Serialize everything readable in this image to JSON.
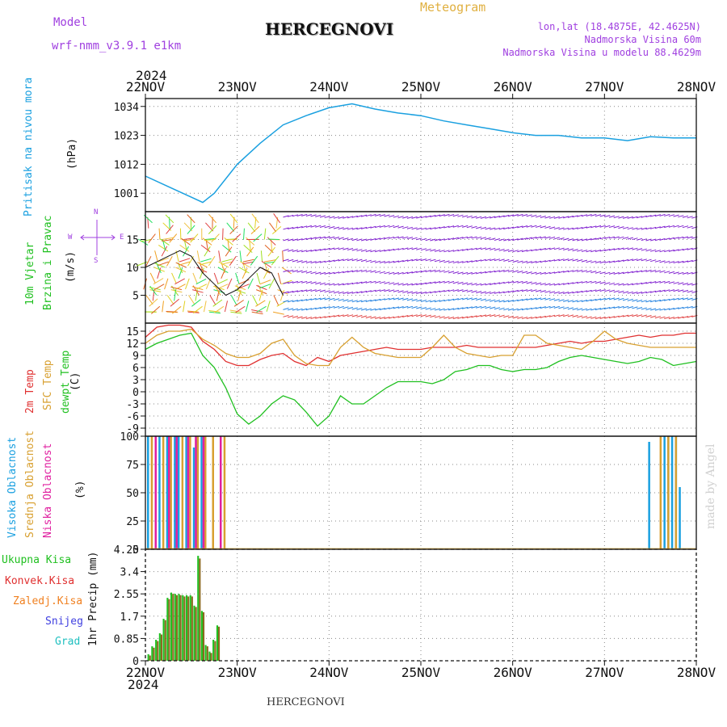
{
  "header": {
    "model_label": "Model",
    "model_name": "wrf-nmm_v3.9.1  e1km",
    "title": "HERCEGNOVI",
    "meteogram_label": "Meteogram",
    "lonlat": "lon,lat (18.4875E, 42.4625N)",
    "elevation": "Nadmorska Visina 60m",
    "model_elevation": "Nadmorska Visina u modelu 88.4629m",
    "year_top": "2024",
    "year_bottom": "2024",
    "footer_title": "HERCEGNOVI",
    "watermark": "made by Angel"
  },
  "colors": {
    "pressure": "#1aa0e0",
    "t2m": "#e03030",
    "sfc": "#d8a030",
    "dewpt": "#20c020",
    "cloud_high": "#1aa0e0",
    "cloud_mid": "#d8a030",
    "cloud_low": "#e020a0",
    "precip_total": "#20c020",
    "precip_conv": "#e03030",
    "precip_frz": "#f08020",
    "snow": "#4040e0",
    "hail": "#20c0c0",
    "wind_label": "#20c020",
    "compass": "#a040e0",
    "model": "#a040e0",
    "meteogram": "#e0b040"
  },
  "chart_data": [
    {
      "type": "line",
      "name": "pressure",
      "axis_labels": [
        "Pritisak na nivou mora",
        "(hPa)"
      ],
      "ylim": [
        994,
        1037
      ],
      "yticks": [
        "1001",
        "1012",
        "1023",
        "1034"
      ],
      "x_day_ticks": [
        "22NOV",
        "23NOV",
        "24NOV",
        "25NOV",
        "26NOV",
        "27NOV",
        "28NOV"
      ],
      "grid": true,
      "x_hours": [
        0,
        6,
        12,
        15,
        18,
        24,
        30,
        36,
        42,
        48,
        54,
        60,
        66,
        72,
        78,
        84,
        90,
        96,
        102,
        108,
        114,
        120,
        126,
        132,
        138,
        144
      ],
      "values": [
        1007.5,
        1003.5,
        999.5,
        997.5,
        1001,
        1012,
        1020,
        1027,
        1030.5,
        1033.5,
        1035,
        1033,
        1031.5,
        1030.5,
        1028.5,
        1027,
        1025.5,
        1024,
        1023,
        1023,
        1022,
        1022,
        1021,
        1022.5,
        1022,
        1022
      ]
    },
    {
      "type": "scatter",
      "name": "wind",
      "axis_labels": [
        "10m Vjetar",
        "Brzina i Pravac",
        "(m/s)"
      ],
      "compass": [
        "N",
        "E",
        "S",
        "W"
      ],
      "ylim": [
        0,
        20
      ],
      "yticks": [
        "5",
        "10",
        "15"
      ],
      "grid": true
    },
    {
      "type": "line",
      "name": "temperature",
      "axis_labels": [
        "2m Temp",
        "SFC Temp",
        "dewpt Temp",
        "(C)"
      ],
      "ylim": [
        -11,
        17
      ],
      "yticks": [
        "-9",
        "-6",
        "-3",
        "0",
        "3",
        "6",
        "9",
        "12",
        "15"
      ],
      "grid": true,
      "x_hours": [
        0,
        3,
        6,
        9,
        12,
        15,
        18,
        21,
        24,
        27,
        30,
        33,
        36,
        39,
        42,
        45,
        48,
        51,
        54,
        57,
        60,
        63,
        66,
        69,
        72,
        75,
        78,
        81,
        84,
        87,
        90,
        93,
        96,
        99,
        102,
        105,
        108,
        111,
        114,
        117,
        120,
        123,
        126,
        129,
        132,
        135,
        138,
        141,
        144
      ],
      "series": [
        {
          "name": "2m Temp",
          "values": [
            13.5,
            16,
            16.5,
            16.5,
            16,
            12.5,
            10.5,
            7.5,
            6.5,
            6.5,
            8,
            9,
            9.5,
            7.5,
            6.5,
            8.5,
            7.5,
            9,
            9.5,
            10,
            10.5,
            11,
            10.5,
            10.5,
            10.5,
            11,
            11,
            11,
            11.5,
            11,
            11,
            11,
            11,
            11,
            11,
            11.5,
            12,
            12.5,
            12,
            12.5,
            12.5,
            13,
            13.5,
            14,
            13.5,
            14,
            14,
            14.5,
            14.5
          ]
        },
        {
          "name": "SFC Temp",
          "values": [
            12,
            14,
            15,
            15,
            15.5,
            13,
            11.5,
            9.5,
            8.5,
            8.5,
            9.5,
            12,
            13,
            9,
            7,
            6.5,
            6.5,
            11,
            13.5,
            11,
            9.5,
            9,
            8.5,
            8.5,
            8.5,
            11,
            14,
            11,
            9.5,
            9,
            8.5,
            9,
            9,
            14,
            14,
            12,
            11.5,
            11,
            10.5,
            12.5,
            15,
            13,
            12,
            11.5,
            11,
            11,
            11,
            11,
            11
          ]
        },
        {
          "name": "dewpt Temp",
          "values": [
            10.5,
            12,
            13,
            14,
            14.5,
            9,
            6,
            1,
            -5.5,
            -8,
            -6,
            -3,
            -1,
            -2,
            -5,
            -8.5,
            -6,
            -1,
            -3,
            -3,
            -1,
            1,
            2.5,
            2.5,
            2.5,
            2,
            3,
            5,
            5.5,
            6.5,
            6.5,
            5.5,
            5,
            5.5,
            5.5,
            6,
            7.5,
            8.5,
            9,
            8.5,
            8,
            7.5,
            7,
            7.5,
            8.5,
            8,
            6.5,
            7,
            7.5
          ]
        }
      ]
    },
    {
      "type": "bar",
      "name": "cloud",
      "axis_labels": [
        "Visoka Oblacnost",
        "Srednja Oblacnost",
        "Niska Oblacnost",
        "(%)"
      ],
      "ylim": [
        0,
        100
      ],
      "yticks": [
        "0",
        "25",
        "50",
        "75",
        "100"
      ],
      "grid": true,
      "series": [
        {
          "name": "Visoka Oblacnost",
          "x_hours": [
            0,
            3,
            5,
            7,
            8,
            10,
            12,
            13,
            14,
            15,
            131,
            135,
            136,
            137,
            138,
            139
          ],
          "values": [
            100,
            100,
            100,
            100,
            100,
            100,
            90,
            100,
            100,
            100,
            95,
            100,
            100,
            100,
            100,
            55
          ]
        },
        {
          "name": "Srednja Oblacnost",
          "x_hours": [
            1,
            4,
            6,
            9,
            11,
            13,
            15,
            17,
            20,
            134,
            136,
            138
          ],
          "values": [
            100,
            100,
            100,
            100,
            100,
            100,
            100,
            100,
            100,
            100,
            100,
            100
          ]
        },
        {
          "name": "Niska Oblacnost",
          "x_hours": [
            2,
            5.5,
            7.5,
            10.5,
            12.5,
            14.5,
            19
          ],
          "values": [
            100,
            100,
            100,
            100,
            100,
            100,
            100
          ]
        }
      ]
    },
    {
      "type": "bar",
      "name": "precip",
      "axis_labels": [
        "Ukupna Kisa",
        "Konvek.Kisa",
        "Zaledj.Kisa",
        "Snijeg",
        "Grad",
        "1hr Precip (mm)"
      ],
      "ylim": [
        0,
        4.25
      ],
      "yticks": [
        "0",
        "0.85",
        "1.7",
        "2.55",
        "3.4",
        "4.25"
      ],
      "grid": true,
      "x_hours": [
        1,
        2,
        3,
        4,
        5,
        6,
        7,
        8,
        9,
        10,
        11,
        12,
        13,
        14,
        15,
        16,
        17,
        18,
        19,
        20
      ],
      "series": [
        {
          "name": "Ukupna Kisa",
          "values": [
            0.25,
            0.55,
            0.8,
            1.05,
            1.6,
            2.4,
            2.6,
            2.55,
            2.55,
            2.5,
            2.5,
            2.5,
            2.1,
            4.0,
            1.9,
            0.6,
            0.35,
            0.8,
            1.35,
            0
          ]
        },
        {
          "name": "Konvek.Kisa",
          "values": [
            0.2,
            0.5,
            0.75,
            1.0,
            1.55,
            2.35,
            2.55,
            2.5,
            2.5,
            2.45,
            2.45,
            2.45,
            2.05,
            3.9,
            1.85,
            0.55,
            0.3,
            0.75,
            1.3,
            0
          ]
        }
      ]
    }
  ]
}
